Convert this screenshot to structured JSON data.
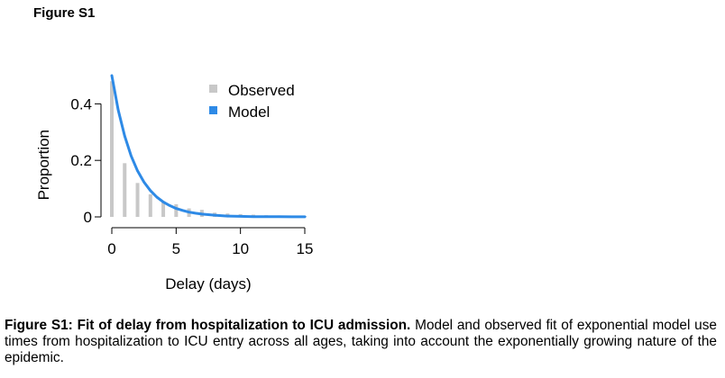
{
  "figure_heading": "Figure S1",
  "caption": {
    "bold": "Figure S1: Fit of delay from hospitalization to ICU admission.",
    "text": " Model and observed fit of exponential model use times from hospitalization to ICU entry across all ages, taking into account the exponentially growing nature of the epidemic."
  },
  "chart_data": {
    "type": "bar",
    "title": "",
    "xlabel": "Delay (days)",
    "ylabel": "Proportion",
    "xlim": [
      0,
      15
    ],
    "ylim": [
      0,
      0.5
    ],
    "xticks": [
      0,
      5,
      10,
      15
    ],
    "yticks": [
      0,
      0.2,
      0.4
    ],
    "ytick_labels": [
      "0",
      "0.2",
      "0.4"
    ],
    "grid": false,
    "legend_position": "top-right",
    "series": [
      {
        "name": "Observed",
        "type": "bar",
        "color": "#c8c8c8",
        "x": [
          0,
          1,
          2,
          3,
          4,
          5,
          6,
          7,
          8,
          9,
          10,
          11,
          12,
          13,
          14,
          15
        ],
        "values": [
          0.48,
          0.19,
          0.12,
          0.08,
          0.055,
          0.045,
          0.03,
          0.025,
          0.015,
          0.012,
          0.01,
          0.008,
          0.006,
          0.005,
          0.004,
          0.003
        ]
      },
      {
        "name": "Model",
        "type": "line",
        "color": "#2e8ae6",
        "x": [
          0,
          0.5,
          1,
          1.5,
          2,
          2.5,
          3,
          3.5,
          4,
          4.5,
          5,
          5.5,
          6,
          6.5,
          7,
          8,
          9,
          10,
          11,
          12,
          13,
          14,
          15
        ],
        "values": [
          0.5,
          0.378,
          0.286,
          0.216,
          0.163,
          0.123,
          0.093,
          0.07,
          0.053,
          0.04,
          0.03,
          0.023,
          0.017,
          0.013,
          0.01,
          0.006,
          0.003,
          0.002,
          0.001,
          0.001,
          0.0005,
          0.0003,
          0.0002
        ]
      }
    ]
  }
}
